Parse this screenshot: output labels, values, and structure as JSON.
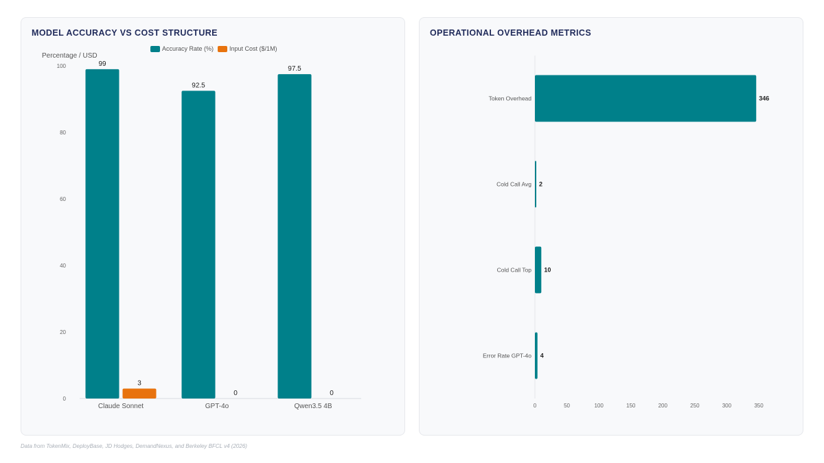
{
  "footer": "Data from TokenMix, DeployBase, JD Hodges, DemandNexus, and Berkeley BFCL v4 (2026)",
  "colors": {
    "teal": "#00808a",
    "orange": "#e8730e",
    "panel_bg": "#f8f9fb",
    "title": "#1f2a5a"
  },
  "left_panel": {
    "title": "MODEL ACCURACY VS COST STRUCTURE",
    "legend": [
      {
        "label": "Accuracy Rate (%)",
        "color": "#00808a"
      },
      {
        "label": "Input Cost ($/1M)",
        "color": "#e8730e"
      }
    ]
  },
  "right_panel": {
    "title": "OPERATIONAL OVERHEAD METRICS"
  },
  "chart_data": [
    {
      "type": "bar",
      "title": "MODEL ACCURACY VS COST STRUCTURE",
      "ylabel": "Percentage / USD",
      "xlabel": "",
      "ylim": [
        0,
        100
      ],
      "yticks": [
        0,
        20,
        40,
        60,
        80,
        100
      ],
      "categories": [
        "Claude Sonnet",
        "GPT-4o",
        "Qwen3.5 4B"
      ],
      "series": [
        {
          "name": "Accuracy Rate (%)",
          "color": "#00808a",
          "values": [
            99,
            92.5,
            97.5
          ]
        },
        {
          "name": "Input Cost ($/1M)",
          "color": "#e8730e",
          "values": [
            3,
            0,
            0
          ]
        }
      ],
      "legend_position": "top-center",
      "grid": false
    },
    {
      "type": "bar",
      "orientation": "horizontal",
      "title": "OPERATIONAL OVERHEAD METRICS",
      "categories": [
        "Token Overhead",
        "Cold Call Avg",
        "Cold Call Top",
        "Error Rate GPT-4o"
      ],
      "values": [
        346,
        2,
        10,
        4
      ],
      "color": "#00808a",
      "xlim": [
        0,
        350
      ],
      "xticks": [
        0,
        50,
        100,
        150,
        200,
        250,
        300,
        350
      ],
      "grid": false
    }
  ]
}
